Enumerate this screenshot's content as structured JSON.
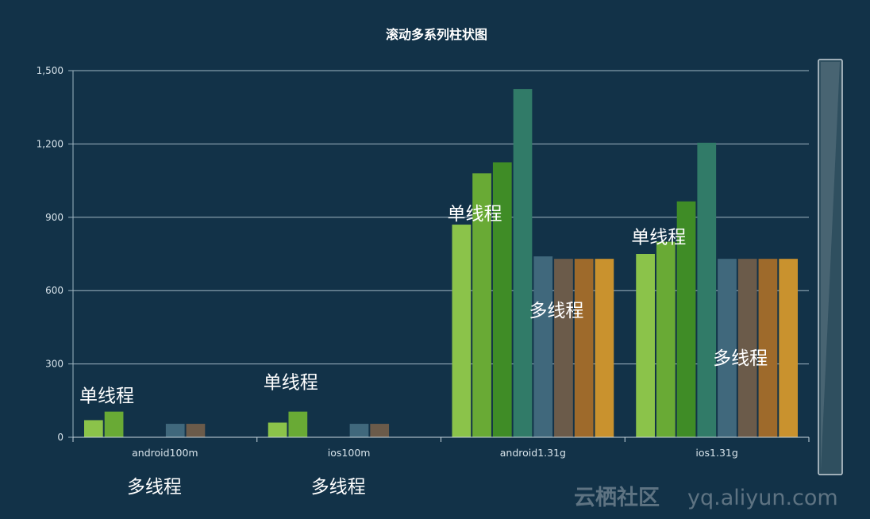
{
  "chart_data": {
    "type": "bar",
    "title": "滚动多系列柱状图",
    "categories": [
      "android100m",
      "ios100m",
      "android1.31g",
      "ios1.31g"
    ],
    "y_ticks": [
      "0",
      "300",
      "600",
      "900",
      "1,200",
      "1,500"
    ],
    "ylim": [
      0,
      1500
    ],
    "grid": true,
    "legend": "none",
    "series": [
      {
        "color": "#8bc34a",
        "values": [
          70,
          60,
          870,
          750
        ]
      },
      {
        "color": "#69aa35",
        "values": [
          105,
          105,
          1080,
          800
        ]
      },
      {
        "color": "#3f8c26",
        "values": [
          null,
          null,
          1125,
          965
        ]
      },
      {
        "color": "#317b68",
        "values": [
          null,
          null,
          1425,
          1205
        ]
      },
      {
        "color": "#40687c",
        "values": [
          55,
          55,
          740,
          730
        ]
      },
      {
        "color": "#6b5b4a",
        "values": [
          55,
          55,
          730,
          730
        ]
      },
      {
        "color": "#9e6a2b",
        "values": [
          null,
          null,
          730,
          730
        ]
      },
      {
        "color": "#c9922e",
        "values": [
          null,
          null,
          730,
          730
        ]
      }
    ],
    "annotations": [
      {
        "text": "单线程",
        "category": "android100m",
        "group": "single",
        "anchor_value": 170
      },
      {
        "text": "多线程",
        "category": "android100m",
        "group": "multi",
        "below_axis": true
      },
      {
        "text": "单线程",
        "category": "ios100m",
        "group": "single",
        "anchor_value": 225
      },
      {
        "text": "多线程",
        "category": "ios100m",
        "group": "multi",
        "below_axis": true
      },
      {
        "text": "单线程",
        "category": "android1.31g",
        "group": "single",
        "anchor_value": 915
      },
      {
        "text": "多线程",
        "category": "android1.31g",
        "group": "multi",
        "anchor_value": 520
      },
      {
        "text": "单线程",
        "category": "ios1.31g",
        "group": "single",
        "anchor_value": 820
      },
      {
        "text": "多线程",
        "category": "ios1.31g",
        "group": "multi",
        "anchor_value": 325
      }
    ],
    "scrollbar": {
      "visible": true
    }
  },
  "watermark": {
    "brand": "云栖社区",
    "domain": "yq.aliyun.com"
  }
}
